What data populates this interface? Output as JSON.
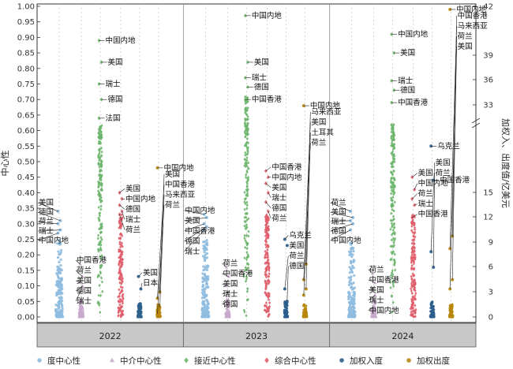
{
  "chart_data": {
    "type": "scatter",
    "title": "",
    "ylabel": "中心性",
    "y2label": "加权入、出度值/亿美元",
    "ylim": [
      0,
      1.0
    ],
    "y_ticks": [
      "0.00",
      "0.05",
      "0.10",
      "0.15",
      "0.20",
      "0.25",
      "0.30",
      "0.35",
      "0.40",
      "0.45",
      "0.50",
      "0.55",
      "0.60",
      "0.65",
      "0.70",
      "0.75",
      "0.80",
      "0.85",
      "0.90",
      "0.95",
      "1.00"
    ],
    "y2_ticks": [
      "0",
      "3",
      "6",
      "9",
      "12",
      "15",
      "33",
      "36",
      "39",
      "42"
    ],
    "years": [
      "2022",
      "2023",
      "2024"
    ],
    "legend_position": "bottom",
    "series": [
      {
        "key": "degree",
        "name": "度中心性",
        "color": "#8fbde0",
        "marker": "circle"
      },
      {
        "key": "between",
        "name": "中介中心性",
        "color": "#c8a8cc",
        "marker": "triangle"
      },
      {
        "key": "close",
        "name": "接近中心性",
        "color": "#6cb56c",
        "marker": "diamond"
      },
      {
        "key": "comp",
        "name": "综合中心性",
        "color": "#e05d6a",
        "marker": "diamond"
      },
      {
        "key": "win",
        "name": "加权入度",
        "color": "#2c5f8c",
        "marker": "circle"
      },
      {
        "key": "wout",
        "name": "加权出度",
        "color": "#b8860b",
        "marker": "circle"
      }
    ],
    "highlights": [
      {
        "year": "2022",
        "series": "degree",
        "points": [
          {
            "label": "美国",
            "y": 0.34
          },
          {
            "label": "德国",
            "y": 0.31
          },
          {
            "label": "荷兰",
            "y": 0.3
          },
          {
            "label": "瑞士",
            "y": 0.28
          },
          {
            "label": "中国内地",
            "y": 0.27
          }
        ]
      },
      {
        "year": "2022",
        "series": "between",
        "points": [
          {
            "label": "中国香港",
            "y": 0.17
          },
          {
            "label": "荷兰",
            "y": 0.13
          },
          {
            "label": "美国",
            "y": 0.11
          },
          {
            "label": "德国",
            "y": 0.1
          },
          {
            "label": "瑞士",
            "y": 0.08
          }
        ]
      },
      {
        "year": "2022",
        "series": "close",
        "points": [
          {
            "label": "中国内地",
            "y": 0.89
          },
          {
            "label": "美国",
            "y": 0.82
          },
          {
            "label": "瑞士",
            "y": 0.75
          },
          {
            "label": "德国",
            "y": 0.7
          },
          {
            "label": "法国",
            "y": 0.64
          }
        ]
      },
      {
        "year": "2022",
        "series": "comp",
        "points": [
          {
            "label": "美国",
            "y": 0.4
          },
          {
            "label": "中国内地",
            "y": 0.38
          },
          {
            "label": "德国",
            "y": 0.36
          },
          {
            "label": "瑞士",
            "y": 0.34
          },
          {
            "label": "荷兰",
            "y": 0.33
          }
        ]
      },
      {
        "year": "2022",
        "series": "win",
        "points": [
          {
            "label": "美国",
            "y": 0.13
          },
          {
            "label": "日本",
            "y": 0.09
          }
        ]
      },
      {
        "year": "2022",
        "series": "wout",
        "points": [
          {
            "label": "中国内地",
            "y": 0.48
          },
          {
            "label": "美国",
            "y": 0.08
          },
          {
            "label": "中国香港",
            "y": 0.06
          },
          {
            "label": "马来西亚",
            "y": 0.03
          },
          {
            "label": "荷兰",
            "y": 0.01
          }
        ]
      },
      {
        "year": "2023",
        "series": "degree",
        "points": [
          {
            "label": "中国内地",
            "y": 0.33
          },
          {
            "label": "美国",
            "y": 0.32
          },
          {
            "label": "中国香港",
            "y": 0.3
          },
          {
            "label": "德国",
            "y": 0.29
          },
          {
            "label": "瑞士",
            "y": 0.28
          }
        ]
      },
      {
        "year": "2023",
        "series": "between",
        "points": [
          {
            "label": "荷兰",
            "y": 0.16
          },
          {
            "label": "中国香港",
            "y": 0.13
          },
          {
            "label": "美国",
            "y": 0.1
          },
          {
            "label": "瑞士",
            "y": 0.08
          },
          {
            "label": "德国",
            "y": 0.05
          }
        ]
      },
      {
        "year": "2023",
        "series": "close",
        "points": [
          {
            "label": "中国内地",
            "y": 0.97
          },
          {
            "label": "美国",
            "y": 0.82
          },
          {
            "label": "瑞士",
            "y": 0.77
          },
          {
            "label": "德国",
            "y": 0.74
          },
          {
            "label": "中国香港",
            "y": 0.7
          }
        ]
      },
      {
        "year": "2023",
        "series": "comp",
        "points": [
          {
            "label": "中国香港",
            "y": 0.47
          },
          {
            "label": "中国内地",
            "y": 0.45
          },
          {
            "label": "美国",
            "y": 0.43
          },
          {
            "label": "瑞士",
            "y": 0.4
          },
          {
            "label": "德国",
            "y": 0.37
          },
          {
            "label": "荷兰",
            "y": 0.34
          }
        ]
      },
      {
        "year": "2023",
        "series": "win",
        "points": [
          {
            "label": "乌克兰",
            "y": 0.25
          },
          {
            "label": "美国",
            "y": 0.23
          },
          {
            "label": "荷兰",
            "y": 0.09
          },
          {
            "label": "德国",
            "y": 0.05
          }
        ]
      },
      {
        "year": "2023",
        "series": "wout",
        "points": [
          {
            "label": "中国内地",
            "y": 0.68
          },
          {
            "label": "马来西亚",
            "y": 0.17
          },
          {
            "label": "美国",
            "y": 0.12
          },
          {
            "label": "土耳其",
            "y": 0.09
          },
          {
            "label": "荷兰",
            "y": 0.07
          }
        ]
      },
      {
        "year": "2024",
        "series": "degree",
        "points": [
          {
            "label": "荷兰",
            "y": 0.34
          },
          {
            "label": "美国",
            "y": 0.32
          },
          {
            "label": "瑞士",
            "y": 0.31
          },
          {
            "label": "德国",
            "y": 0.3
          },
          {
            "label": "中国内地",
            "y": 0.28
          }
        ]
      },
      {
        "year": "2024",
        "series": "between",
        "points": [
          {
            "label": "荷兰",
            "y": 0.14
          },
          {
            "label": "中国香港",
            "y": 0.11
          },
          {
            "label": "美国",
            "y": 0.09
          },
          {
            "label": "瑞士",
            "y": 0.07
          },
          {
            "label": "中国内地",
            "y": 0.03
          }
        ]
      },
      {
        "year": "2024",
        "series": "close",
        "points": [
          {
            "label": "中国内地",
            "y": 0.91
          },
          {
            "label": "美国",
            "y": 0.85
          },
          {
            "label": "瑞士",
            "y": 0.76
          },
          {
            "label": "德国",
            "y": 0.73
          },
          {
            "label": "中国香港",
            "y": 0.69
          }
        ]
      },
      {
        "year": "2024",
        "series": "comp",
        "points": [
          {
            "label": "美国",
            "y": 0.45
          },
          {
            "label": "中国内地",
            "y": 0.41
          },
          {
            "label": "荷兰",
            "y": 0.38
          },
          {
            "label": "瑞士",
            "y": 0.36
          },
          {
            "label": "中国香港",
            "y": 0.32
          }
        ]
      },
      {
        "year": "2024",
        "series": "win",
        "points": [
          {
            "label": "乌克兰",
            "y": 0.55
          },
          {
            "label": "中国香港",
            "y": 0.44
          },
          {
            "label": "美国",
            "y": 0.21
          },
          {
            "label": "荷兰",
            "y": 0.16
          }
        ]
      },
      {
        "year": "2024",
        "series": "wout",
        "points": [
          {
            "label": "中国内地",
            "y": 0.99
          },
          {
            "label": "中国香港",
            "y": 0.26
          },
          {
            "label": "马来西亚",
            "y": 0.22
          },
          {
            "label": "荷兰",
            "y": 0.12
          },
          {
            "label": "美国",
            "y": 0.09
          }
        ]
      }
    ]
  }
}
